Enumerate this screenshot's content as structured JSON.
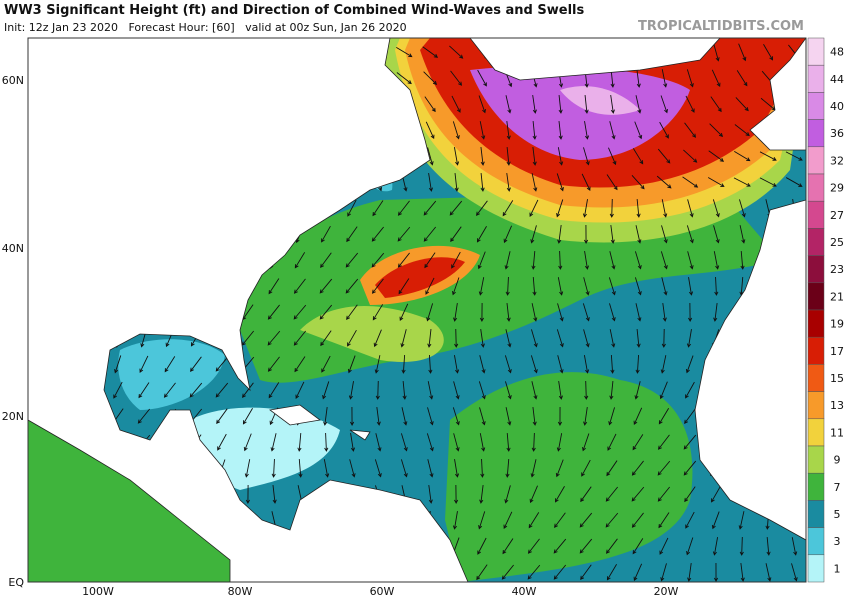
{
  "header": {
    "title": "WW3 Significant Height (ft) and Direction of Combined Wind-Waves and Swells",
    "subtitle": "Init: 12z Jan 23 2020   Forecast Hour: [60]   valid at 00z Sun, Jan 26 2020",
    "watermark": "TROPICALTIDBITS.COM"
  },
  "map": {
    "lat_labels": [
      "60N",
      "40N",
      "20N",
      "EQ"
    ],
    "lon_labels": [
      "100W",
      "80W",
      "60W",
      "40W",
      "20W"
    ]
  },
  "colorbar": {
    "levels": [
      48,
      44,
      40,
      36,
      32,
      29,
      27,
      25,
      23,
      21,
      19,
      17,
      15,
      13,
      11,
      9,
      7,
      5,
      3,
      1
    ],
    "colors": [
      "#f5d4f0",
      "#eab0ea",
      "#d98ae6",
      "#c15ee0",
      "#f29ccc",
      "#e572b0",
      "#d4488f",
      "#b32466",
      "#8c0e3c",
      "#6b0018",
      "#a80000",
      "#d81e05",
      "#f05a14",
      "#f79a2a",
      "#f2d23c",
      "#a8d64a",
      "#3fb43c",
      "#1a8ba0",
      "#4cc6da",
      "#b4f4f8"
    ]
  }
}
